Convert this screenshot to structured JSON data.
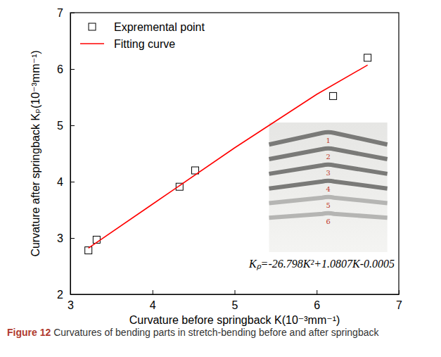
{
  "chart_data": {
    "type": "scatter",
    "title": "Figure 12 Curvatures of bending parts in stretch-bending before and after springback",
    "x_label": "Curvature before springback K(10⁻³mm⁻¹)",
    "y_label": "Curvature after springback Kₚ(10⁻³mm⁻¹)",
    "xlim": [
      3,
      7
    ],
    "ylim": [
      2,
      7
    ],
    "xticks": [
      3,
      4,
      5,
      6,
      7
    ],
    "yticks": [
      2,
      3,
      4,
      5,
      6,
      7
    ],
    "legend": "upper left",
    "series": [
      {
        "name": "Expremental point",
        "type": "scatter",
        "marker": "square",
        "color": "#000000",
        "x": [
          3.22,
          3.32,
          4.33,
          4.52,
          6.2,
          6.62
        ],
        "values": [
          2.78,
          2.97,
          3.91,
          4.2,
          5.52,
          6.2
        ]
      },
      {
        "name": "Fitting curve",
        "type": "line",
        "line_style": "solid",
        "color": "#ff0000",
        "x": [
          3.22,
          4,
          5,
          6,
          6.62
        ],
        "values": [
          2.82,
          3.6,
          4.6,
          5.55,
          6.07
        ]
      }
    ],
    "annotations": [
      "Kₚ=-26.798K²+1.0807K-0.0005"
    ],
    "inset_labels": [
      "1",
      "2",
      "3",
      "4",
      "5",
      "6"
    ]
  }
}
